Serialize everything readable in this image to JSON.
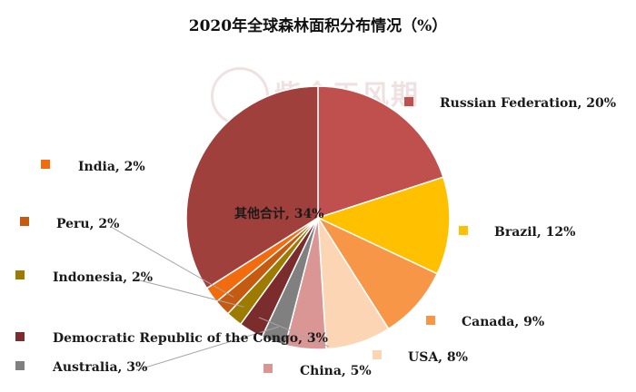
{
  "title": "2020年全球森林面积分布情况（%）",
  "watermark": {
    "text": "紫金天风期货",
    "badge_text": "紫金天风"
  },
  "chart_data": {
    "type": "pie",
    "title": "2020年全球森林面积分布情况（%）",
    "unit": "%",
    "slices": [
      {
        "name": "Russian Federation",
        "value": 20,
        "label": "Russian Federation, 20%",
        "color": "#c0504d"
      },
      {
        "name": "Brazil",
        "value": 12,
        "label": "Brazil, 12%",
        "color": "#ffc000"
      },
      {
        "name": "Canada",
        "value": 9,
        "label": "Canada, 9%",
        "color": "#f79646"
      },
      {
        "name": "USA",
        "value": 8,
        "label": "USA, 8%",
        "color": "#fcd5b5"
      },
      {
        "name": "China",
        "value": 5,
        "label": "China, 5%",
        "color": "#d99694"
      },
      {
        "name": "Australia",
        "value": 3,
        "label": "Australia, 3%",
        "color": "#808080"
      },
      {
        "name": "Democratic Republic of the Congo",
        "value": 3,
        "label": "Democratic Republic of the Congo, 3%",
        "color": "#7b2c2c"
      },
      {
        "name": "Indonesia",
        "value": 2,
        "label": "Indonesia, 2%",
        "color": "#9c7b00"
      },
      {
        "name": "Peru",
        "value": 2,
        "label": "Peru, 2%",
        "color": "#c55a11"
      },
      {
        "name": "India",
        "value": 2,
        "label": "India, 2%",
        "color": "#f26b0f"
      },
      {
        "name": "其他合计",
        "value": 34,
        "label": "其他合计, 34%",
        "color": "#a0403c"
      }
    ]
  }
}
